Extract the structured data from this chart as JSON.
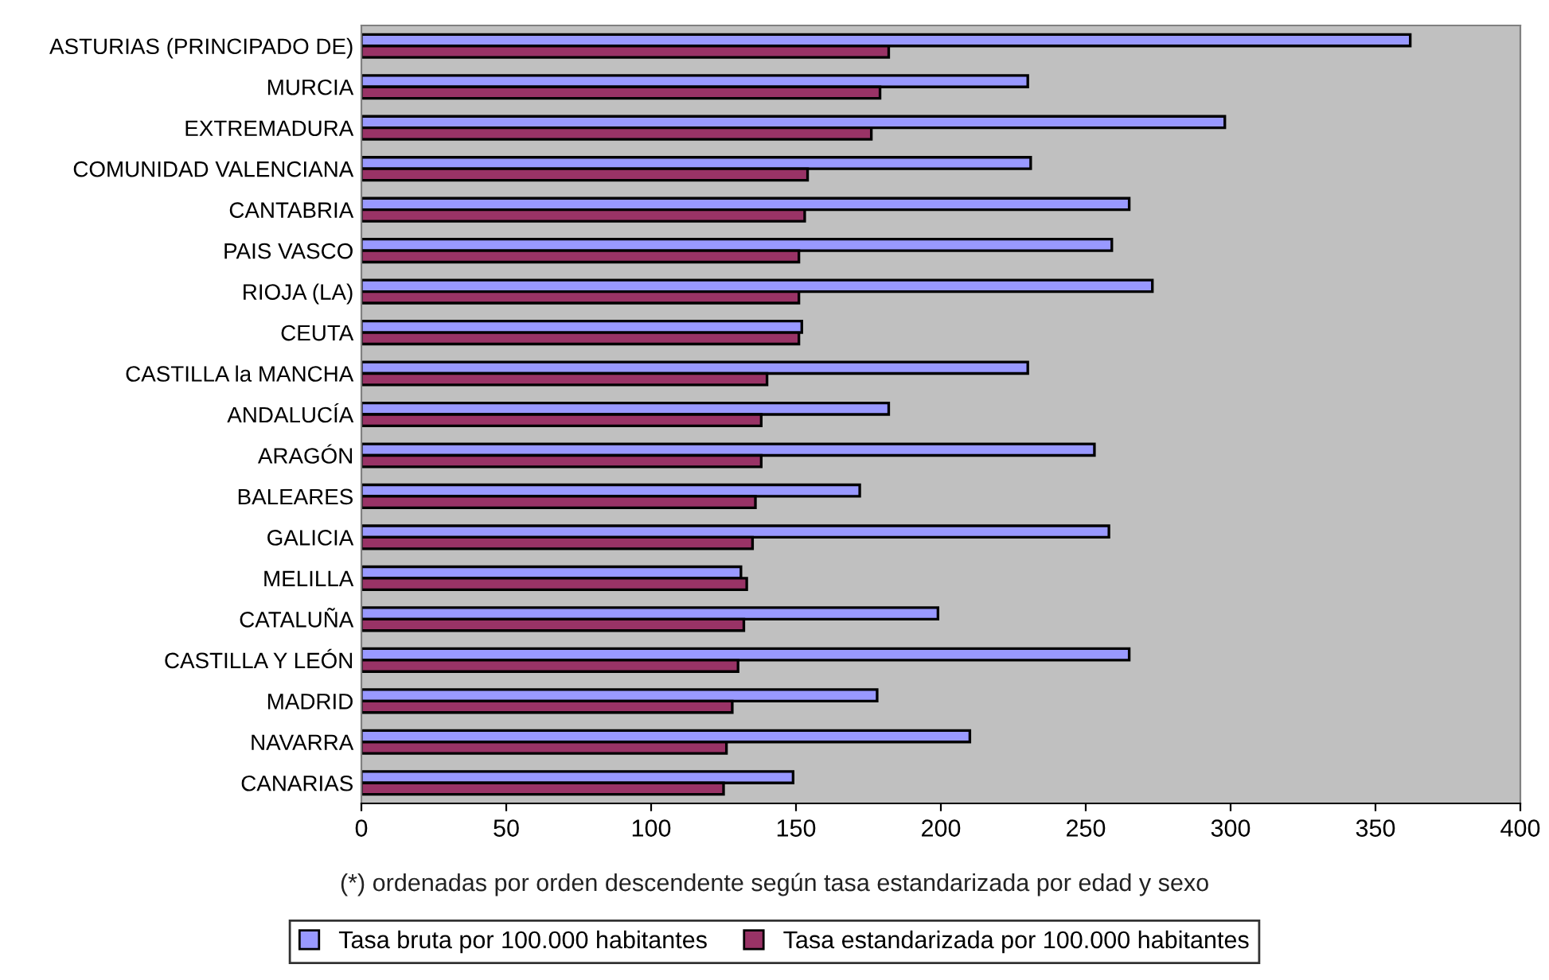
{
  "chart_data": {
    "type": "bar",
    "orientation": "horizontal",
    "categories": [
      "ASTURIAS (PRINCIPADO DE)",
      "MURCIA",
      "EXTREMADURA",
      "COMUNIDAD VALENCIANA",
      "CANTABRIA",
      "PAIS VASCO",
      "RIOJA (LA)",
      "CEUTA",
      "CASTILLA la MANCHA",
      "ANDALUCÍA",
      "ARAGÓN",
      "BALEARES",
      "GALICIA",
      "MELILLA",
      "CATALUÑA",
      "CASTILLA Y LEÓN",
      "MADRID",
      "NAVARRA",
      "CANARIAS"
    ],
    "series": [
      {
        "name": "Tasa bruta por 100.000 habitantes",
        "color": "#9999ff",
        "values": [
          362,
          230,
          298,
          231,
          265,
          259,
          273,
          152,
          230,
          182,
          253,
          172,
          258,
          131,
          199,
          265,
          178,
          210,
          149
        ]
      },
      {
        "name": "Tasa estandarizada por 100.000 habitantes",
        "color": "#993366",
        "values": [
          182,
          179,
          176,
          154,
          153,
          151,
          151,
          151,
          140,
          138,
          138,
          136,
          135,
          133,
          132,
          130,
          128,
          126,
          125
        ]
      }
    ],
    "xlim": [
      0,
      400
    ],
    "xticks": [
      0,
      50,
      100,
      150,
      200,
      250,
      300,
      350,
      400
    ],
    "grid": false,
    "legend": "bottom",
    "annotations": [
      "(*) ordenadas por orden descendente según tasa estandarizada por edad y sexo"
    ]
  }
}
